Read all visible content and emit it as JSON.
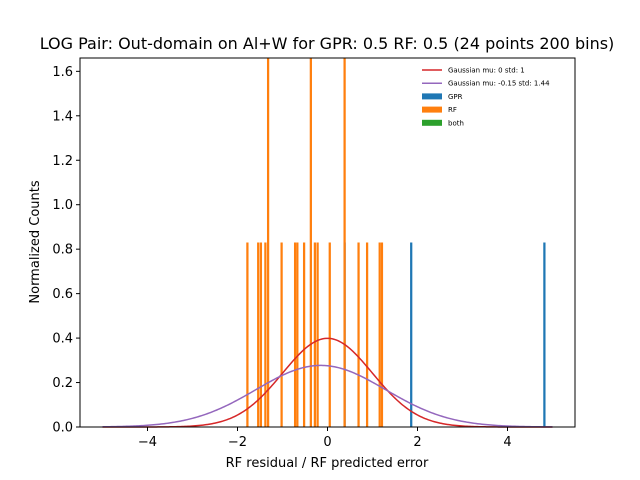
{
  "chart_data": {
    "type": "bar",
    "title": "LOG Pair: Out-domain on Al+W for GPR: 0.5 RF: 0.5 (24 points 200 bins)",
    "xlabel": "RF residual / RF predicted error",
    "ylabel": "Normalized Counts",
    "xlim": [
      -5.5,
      5.5
    ],
    "ylim": [
      0,
      1.66
    ],
    "xticks": [
      -4,
      -2,
      0,
      2,
      4
    ],
    "yticks": [
      0.0,
      0.2,
      0.4,
      0.6,
      0.8,
      1.0,
      1.2,
      1.4,
      1.6
    ],
    "bin_width": 0.05,
    "legend_position": "top-right",
    "series": [
      {
        "name": "GPR",
        "color": "#1f77b4",
        "bars": [
          {
            "x": 0.38,
            "y": 0.83
          },
          {
            "x": 1.86,
            "y": 0.83
          },
          {
            "x": 4.82,
            "y": 0.83
          }
        ]
      },
      {
        "name": "RF",
        "color": "#ff7f0e",
        "bars": [
          {
            "x": -1.78,
            "y": 0.83
          },
          {
            "x": -1.54,
            "y": 0.83
          },
          {
            "x": -1.48,
            "y": 0.83
          },
          {
            "x": -1.38,
            "y": 0.83
          },
          {
            "x": -1.32,
            "y": 1.66
          },
          {
            "x": -1.02,
            "y": 0.83
          },
          {
            "x": -0.72,
            "y": 0.83
          },
          {
            "x": -0.67,
            "y": 0.83
          },
          {
            "x": -0.52,
            "y": 0.83
          },
          {
            "x": -0.37,
            "y": 1.66
          },
          {
            "x": -0.28,
            "y": 0.83
          },
          {
            "x": -0.22,
            "y": 0.83
          },
          {
            "x": 0.05,
            "y": 0.83
          },
          {
            "x": 0.38,
            "y": 1.66
          },
          {
            "x": 0.69,
            "y": 0.83
          },
          {
            "x": 0.88,
            "y": 0.83
          },
          {
            "x": 1.16,
            "y": 0.83
          },
          {
            "x": 1.21,
            "y": 0.83
          }
        ]
      },
      {
        "name": "both",
        "color": "#2ca02c",
        "bars": []
      }
    ],
    "curves": [
      {
        "name": "Gaussian mu: 0 std: 1",
        "color": "#d62728",
        "mu": 0,
        "std": 1,
        "x_range": [
          -5,
          5
        ]
      },
      {
        "name": "Gaussian mu: -0.15 std: 1.44",
        "color": "#9467bd",
        "mu": -0.15,
        "std": 1.44,
        "x_range": [
          -5,
          5
        ]
      }
    ]
  }
}
